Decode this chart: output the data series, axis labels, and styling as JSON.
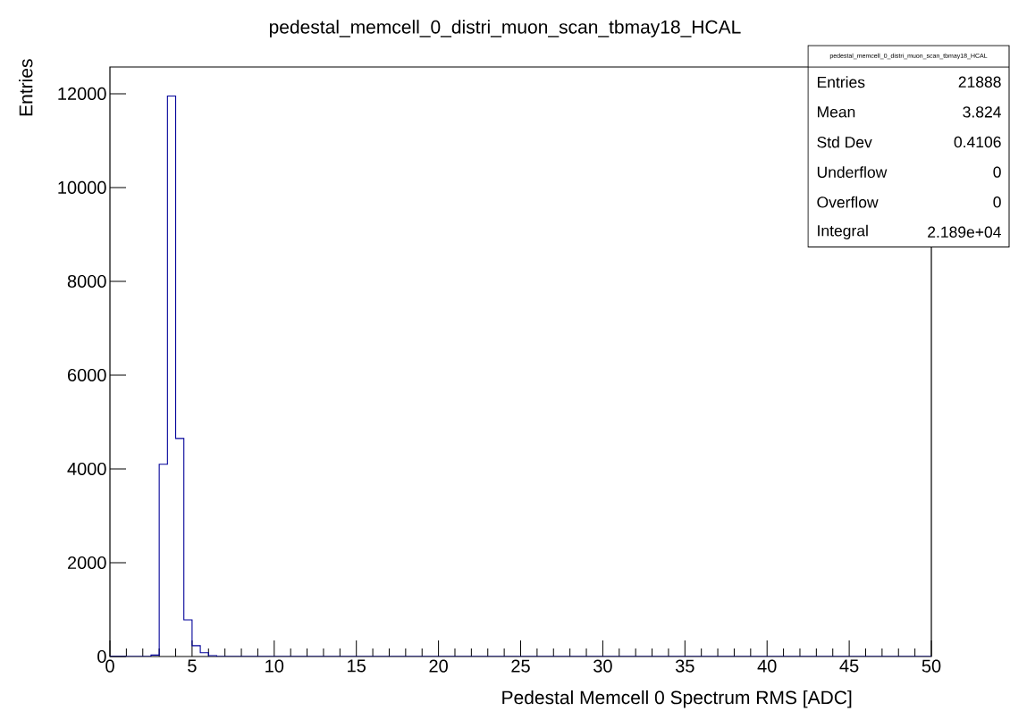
{
  "chart_data": {
    "type": "histogram",
    "title": "pedestal_memcell_0_distri_muon_scan_tbmay18_HCAL",
    "xlabel": "Pedestal Memcell 0 Spectrum RMS [ADC]",
    "ylabel": "Entries",
    "bins": [
      0,
      0.5,
      1,
      1.5,
      2,
      2.5,
      3,
      3.5,
      4,
      4.5,
      5,
      5.5,
      6,
      6.5,
      7,
      7.5,
      8,
      8.5,
      9,
      9.5,
      10,
      10.5,
      11,
      11.5,
      12,
      12.5,
      13,
      13.5,
      14,
      14.5,
      15,
      15.5,
      16,
      16.5,
      17,
      17.5,
      18,
      18.5,
      19,
      19.5,
      20,
      20.5,
      21,
      21.5,
      22,
      22.5,
      23,
      23.5,
      24,
      24.5,
      25,
      25.5,
      26,
      26.5,
      27,
      27.5,
      28,
      28.5,
      29,
      29.5,
      30,
      30.5,
      31,
      31.5,
      32,
      32.5,
      33,
      33.5,
      34,
      34.5,
      35,
      35.5,
      36,
      36.5,
      37,
      37.5,
      38,
      38.5,
      39,
      39.5,
      40,
      40.5,
      41,
      41.5,
      42,
      42.5,
      43,
      43.5,
      44,
      44.5,
      45,
      45.5,
      46,
      46.5,
      47,
      47.5,
      48,
      48.5,
      49,
      49.5,
      50
    ],
    "values": [
      0,
      0,
      0,
      0,
      0,
      30,
      4100,
      11950,
      4650,
      780,
      230,
      80,
      20,
      0,
      0,
      0,
      0,
      0,
      0,
      0,
      0,
      0,
      0,
      0,
      0,
      0,
      0,
      0,
      0,
      0,
      0,
      0,
      0,
      0,
      0,
      0,
      0,
      0,
      0,
      0,
      0,
      0,
      0,
      0,
      0,
      0,
      0,
      0,
      0,
      0,
      0,
      0,
      0,
      0,
      0,
      0,
      0,
      0,
      0,
      0,
      0,
      0,
      0,
      0,
      0,
      0,
      0,
      0,
      0,
      0,
      0,
      0,
      0,
      0,
      0,
      0,
      0,
      0,
      0,
      0,
      0,
      0,
      0,
      0,
      0,
      0,
      0,
      0,
      0,
      0,
      0,
      0,
      0,
      0,
      0,
      0,
      0,
      0,
      0,
      0
    ],
    "color": "#000099",
    "xlim": [
      0,
      50
    ],
    "xticks": [
      0,
      5,
      10,
      15,
      20,
      25,
      30,
      35,
      40,
      45,
      50
    ],
    "ylim": [
      0,
      12570
    ],
    "yticks": [
      0,
      2000,
      4000,
      6000,
      8000,
      10000,
      12000
    ],
    "grid": false,
    "annotations": [
      "pedestal_memcell_0_distri_muon_scan_tbmay18_HCAL",
      "Entries",
      "21888",
      "Mean",
      "3.824",
      "Std Dev",
      "0.4106",
      "Underflow",
      "0",
      "Overflow",
      "0",
      "Integral",
      "2.189e+04"
    ]
  }
}
